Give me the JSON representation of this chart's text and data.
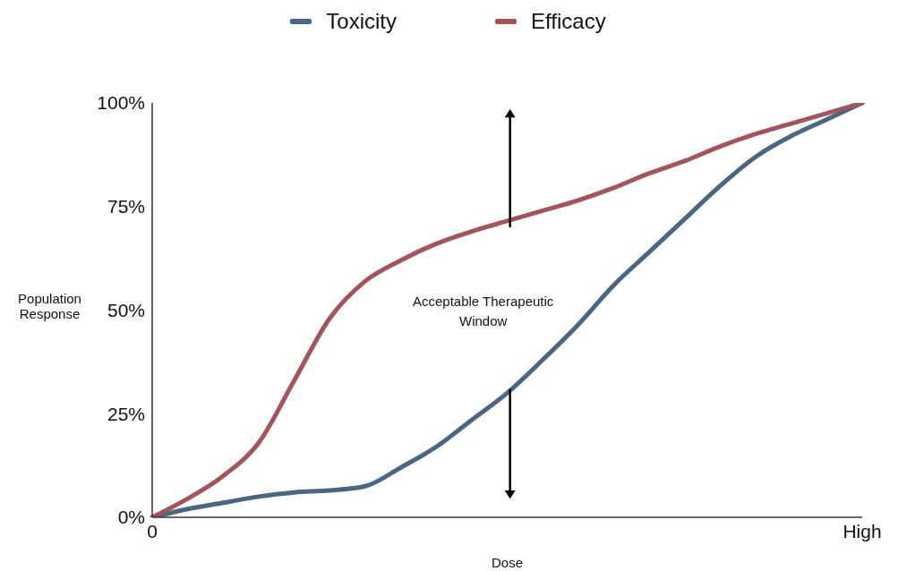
{
  "chart_data": {
    "type": "line",
    "xlabel": "Dose",
    "ylabel": "Population Response",
    "annotations": [
      "Acceptable Therapeutic Window"
    ],
    "categories": [
      "0",
      null,
      null,
      null,
      null,
      null,
      null,
      null,
      null,
      null,
      null,
      null,
      null,
      null,
      null,
      null,
      null,
      null,
      null,
      null,
      "High"
    ],
    "ylim": [
      0,
      100
    ],
    "yticks": [
      {
        "value": 0,
        "label": "0%"
      },
      {
        "value": 25,
        "label": "25%"
      },
      {
        "value": 50,
        "label": "50%"
      },
      {
        "value": 75,
        "label": "75%"
      },
      {
        "value": 100,
        "label": "100%"
      }
    ],
    "grid": false,
    "legend": "top",
    "marker": "none",
    "line_style": "solid",
    "series": [
      {
        "name": "Toxicity",
        "color": "#4a6680",
        "values": [
          0,
          2,
          3.5,
          5,
          6,
          6.5,
          7.5,
          12,
          17,
          23.5,
          30,
          38,
          46.5,
          56,
          64,
          72,
          80,
          87,
          92,
          96,
          100
        ]
      },
      {
        "name": "Efficacy",
        "color": "#a0565c",
        "values": [
          0,
          4.5,
          10,
          18,
          33,
          48,
          57,
          62,
          66,
          69,
          71.5,
          74,
          76.5,
          79.5,
          83,
          86,
          89.5,
          92.5,
          95,
          97.5,
          100
        ]
      }
    ]
  }
}
